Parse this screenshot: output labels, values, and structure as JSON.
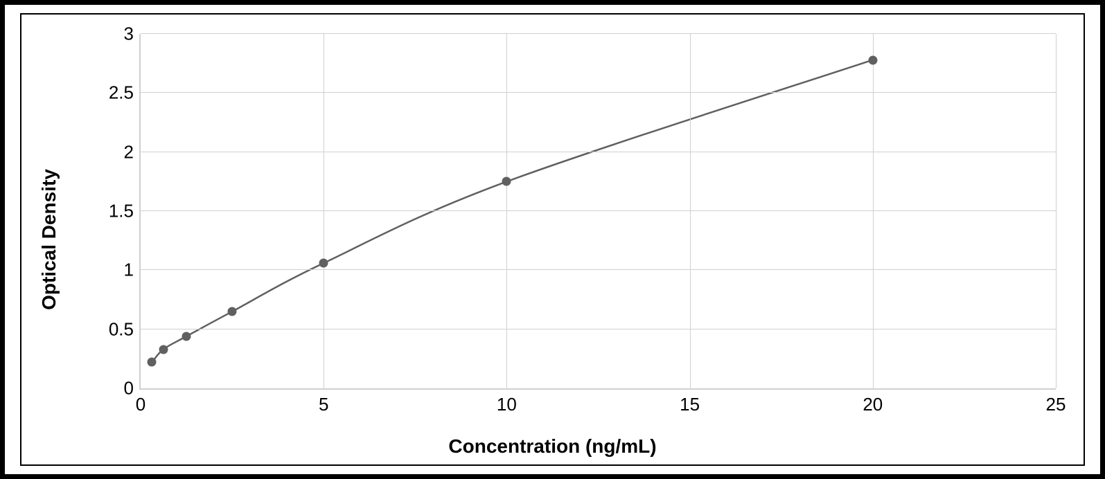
{
  "chart": {
    "type": "scatter-line",
    "y_axis_label": "Optical Density",
    "x_axis_label": "Concentration (ng/mL)",
    "axis_label_fontsize": 28,
    "axis_label_fontweight": 700,
    "tick_fontsize": 26,
    "xlim": [
      0,
      25
    ],
    "ylim": [
      0,
      3
    ],
    "x_ticks": [
      0,
      5,
      10,
      15,
      20,
      25
    ],
    "y_ticks": [
      0,
      0.5,
      1,
      1.5,
      2,
      2.5,
      3
    ],
    "grid_color": "#d0d0d0",
    "axis_line_color": "#d0d0d0",
    "background_color": "#ffffff",
    "line_color": "#606060",
    "line_width": 2.5,
    "marker_color": "#606060",
    "marker_size": 13,
    "data": [
      {
        "x": 0.31,
        "y": 0.22
      },
      {
        "x": 0.62,
        "y": 0.33
      },
      {
        "x": 1.25,
        "y": 0.44
      },
      {
        "x": 2.5,
        "y": 0.65
      },
      {
        "x": 5.0,
        "y": 1.06
      },
      {
        "x": 10.0,
        "y": 1.75
      },
      {
        "x": 20.0,
        "y": 2.78
      }
    ],
    "outer_border_color": "#000000",
    "outer_border_width": 7,
    "inner_border_color": "#000000",
    "inner_border_width": 2
  }
}
